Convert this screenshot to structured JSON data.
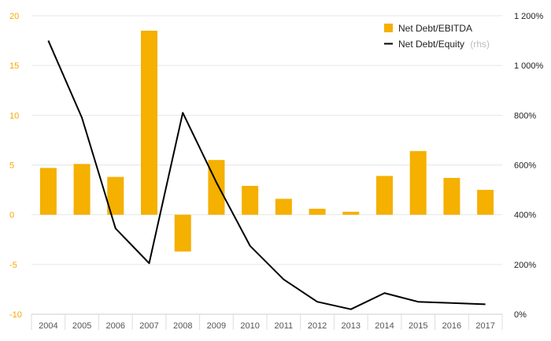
{
  "chart_data": {
    "type": "bar",
    "categories": [
      "2004",
      "2005",
      "2006",
      "2007",
      "2008",
      "2009",
      "2010",
      "2011",
      "2012",
      "2013",
      "2014",
      "2015",
      "2016",
      "2017"
    ],
    "series": [
      {
        "name": "Net Debt/EBITDA",
        "type": "bar",
        "axis": "left",
        "color": "#F5B000",
        "values": [
          4.7,
          5.1,
          3.8,
          18.5,
          -3.7,
          5.5,
          2.9,
          1.6,
          0.6,
          0.3,
          3.9,
          6.4,
          3.7,
          2.5
        ]
      },
      {
        "name": "Net Debt/Equity",
        "type": "line",
        "axis": "right",
        "color": "#000000",
        "values": [
          1100,
          790,
          345,
          205,
          810,
          530,
          275,
          140,
          50,
          20,
          85,
          50,
          45,
          40
        ]
      }
    ],
    "left_axis": {
      "ylim": [
        -10,
        20
      ],
      "ticks": [
        20,
        15,
        10,
        5,
        0,
        -5,
        -10
      ],
      "tick_labels": [
        "20",
        "15",
        "10",
        "5",
        "0",
        "-5",
        "-10"
      ]
    },
    "right_axis": {
      "ylim": [
        0,
        1200
      ],
      "ticks": [
        1200,
        1000,
        800,
        600,
        400,
        200,
        0
      ],
      "tick_labels": [
        "1 200%",
        "1 000%",
        "800%",
        "600%",
        "400%",
        "200%",
        "0%"
      ]
    },
    "legend": {
      "position": "top-right",
      "items": [
        {
          "label": "Net Debt/EBITDA",
          "note": "",
          "symbol": "square",
          "color": "#F5B000"
        },
        {
          "label": "Net Debt/Equity",
          "note": "(rhs)",
          "symbol": "line",
          "color": "#000000"
        }
      ]
    },
    "grid": true,
    "colors": {
      "left_tick": "#F5A800",
      "right_tick": "#222222",
      "x_tick": "#555555",
      "grid": "#e6e6e6"
    }
  }
}
